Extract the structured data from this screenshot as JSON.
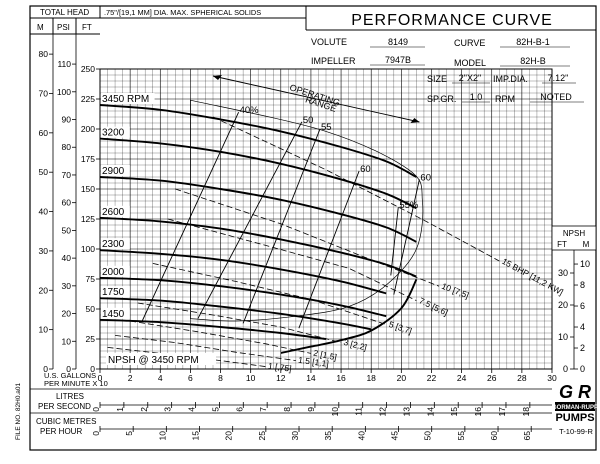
{
  "header": {
    "total_head": "TOTAL HEAD",
    "unit_m": "M",
    "unit_psi": "PSI",
    "unit_ft": "FT",
    "solids_note": ".75\"/[19,1 MM] DIA. MAX. SPHERICAL SOLIDS",
    "title": "PERFORMANCE CURVE"
  },
  "spec": {
    "volute_label": "VOLUTE",
    "volute": "8149",
    "curve_label": "CURVE",
    "curve": "82H-B-1",
    "impeller_label": "IMPELLER",
    "impeller": "7947B",
    "model_label": "MODEL",
    "model": "82H-B",
    "size_label": "SIZE",
    "size": "2\"X2\"",
    "imp_dia_label": "IMP.DIA.",
    "imp_dia": "7.12\"",
    "sp_gr_label": "SP.GR.",
    "sp_gr": "1.0",
    "rpm_label": "RPM",
    "rpm": "NOTED"
  },
  "footer": {
    "us_gallons": "U.S. GALLONS",
    "per_minute": "PER MINUTE X 10",
    "litres": "LITRES",
    "per_second": "PER SECOND",
    "cubic_metres": "CUBIC METRES",
    "per_hour": "PER HOUR",
    "file_no": "FILE NO. 82H0.a01",
    "doc_no": "T-10-99-R"
  },
  "logo": {
    "monogram": "G R",
    "brand_line1": "GORMAN-RUPP",
    "brand_line2": "PUMPS"
  },
  "chart_data": {
    "type": "line",
    "x_unit": "U.S. GALLONS PER MINUTE X 10",
    "xlim": [
      0,
      30
    ],
    "ylim_ft": [
      0,
      250
    ],
    "ylim_m": [
      0,
      80
    ],
    "ylim_psi": [
      0,
      110
    ],
    "x_ticks": [
      "0",
      "2",
      "4",
      "6",
      "8",
      "10",
      "12",
      "14",
      "16",
      "18",
      "20",
      "22",
      "24",
      "26",
      "28",
      "30"
    ],
    "ft_ticks": [
      "0",
      "25",
      "50",
      "75",
      "100",
      "125",
      "150",
      "175",
      "200",
      "225",
      "250"
    ],
    "m_ticks": [
      "0",
      "10",
      "20",
      "30",
      "40",
      "50",
      "60",
      "70",
      "80"
    ],
    "psi_ticks": [
      "0",
      "10",
      "20",
      "30",
      "40",
      "50",
      "60",
      "70",
      "80",
      "90",
      "100",
      "110"
    ],
    "litres_ticks": [
      "0",
      "1",
      "2",
      "3",
      "4",
      "5",
      "6",
      "7",
      "8",
      "9",
      "10",
      "11",
      "12",
      "13",
      "14",
      "15",
      "16",
      "17",
      "18"
    ],
    "m3h_ticks": [
      "0",
      "5",
      "10",
      "15",
      "20",
      "25",
      "30",
      "35",
      "40",
      "45",
      "50",
      "55",
      "60",
      "65"
    ],
    "npsh_title": "NPSH",
    "npsh_ft_label": "FT",
    "npsh_m_label": "M",
    "npsh_ft_ticks": [
      "0",
      "10",
      "20",
      "30"
    ],
    "npsh_m_ticks": [
      "0",
      "2",
      "4",
      "6",
      "8",
      "10"
    ],
    "operating_range_label": "OPERATING\nRANGE",
    "npsh_curve_label": "NPSH @ 3450 RPM",
    "npsh_curve": [
      [
        12,
        5
      ],
      [
        14,
        7
      ],
      [
        16,
        9
      ],
      [
        18,
        12
      ],
      [
        20,
        19
      ],
      [
        21,
        28
      ]
    ],
    "speed_curves": [
      {
        "name": "3450 RPM",
        "label": "3450 RPM",
        "points": [
          [
            0,
            220
          ],
          [
            4,
            216
          ],
          [
            8,
            208
          ],
          [
            12,
            198
          ],
          [
            16,
            185
          ],
          [
            19,
            173
          ],
          [
            21,
            160
          ]
        ]
      },
      {
        "name": "3200",
        "label": "3200",
        "points": [
          [
            0,
            192
          ],
          [
            4,
            188
          ],
          [
            8,
            181
          ],
          [
            12,
            171
          ],
          [
            16,
            158
          ],
          [
            19,
            146
          ],
          [
            21,
            134
          ]
        ]
      },
      {
        "name": "2900",
        "label": "2900",
        "points": [
          [
            0,
            160
          ],
          [
            4,
            157
          ],
          [
            8,
            150
          ],
          [
            12,
            141
          ],
          [
            16,
            129
          ],
          [
            19,
            118
          ],
          [
            21,
            106
          ]
        ]
      },
      {
        "name": "2600",
        "label": "2600",
        "points": [
          [
            0,
            126
          ],
          [
            4,
            123
          ],
          [
            8,
            117
          ],
          [
            12,
            108
          ],
          [
            16,
            97
          ],
          [
            19,
            87
          ],
          [
            21,
            77
          ]
        ]
      },
      {
        "name": "2300",
        "label": "2300",
        "points": [
          [
            0,
            99
          ],
          [
            4,
            96
          ],
          [
            8,
            91
          ],
          [
            12,
            83
          ],
          [
            16,
            73
          ],
          [
            19,
            63
          ]
        ]
      },
      {
        "name": "2000",
        "label": "2000",
        "points": [
          [
            0,
            76
          ],
          [
            4,
            74
          ],
          [
            8,
            69
          ],
          [
            12,
            62
          ],
          [
            16,
            53
          ],
          [
            19,
            44
          ]
        ]
      },
      {
        "name": "1750",
        "label": "1750",
        "points": [
          [
            0,
            59
          ],
          [
            4,
            57
          ],
          [
            8,
            52
          ],
          [
            12,
            46
          ],
          [
            16,
            38
          ],
          [
            18,
            33
          ]
        ]
      },
      {
        "name": "1450",
        "label": "1450",
        "points": [
          [
            0,
            41
          ],
          [
            4,
            39
          ],
          [
            8,
            35
          ],
          [
            12,
            30
          ],
          [
            15,
            25
          ]
        ]
      }
    ],
    "efficiency_lines": [
      {
        "label": "40%",
        "points": [
          [
            2.8,
            40
          ],
          [
            9.2,
            214
          ]
        ]
      },
      {
        "label": "50",
        "points": [
          [
            6.5,
            42
          ],
          [
            13.4,
            206
          ]
        ]
      },
      {
        "label": "55",
        "points": [
          [
            9.5,
            38
          ],
          [
            14.6,
            200
          ]
        ]
      },
      {
        "label": "60",
        "points": [
          [
            13.2,
            34
          ],
          [
            17.2,
            165
          ]
        ]
      },
      {
        "label": "60",
        "points": [
          [
            19.5,
            62
          ],
          [
            21.2,
            158
          ]
        ]
      },
      {
        "label": "55%",
        "points": [
          [
            19.3,
            78
          ],
          [
            19.8,
            135
          ]
        ]
      }
    ],
    "bhp_lines": [
      {
        "label": "15 BHP [11,2 KW]",
        "points": [
          [
            7.5,
            210
          ],
          [
            15,
            166
          ],
          [
            21.5,
            124
          ],
          [
            26.5,
            90
          ]
        ]
      },
      {
        "label": "10 [7,5]",
        "points": [
          [
            5,
            150
          ],
          [
            12,
            121
          ],
          [
            18,
            91
          ],
          [
            22.5,
            69
          ]
        ]
      },
      {
        "label": "7.5 [5,6]",
        "points": [
          [
            4.5,
            125
          ],
          [
            11,
            103
          ],
          [
            16.5,
            84
          ],
          [
            21,
            57
          ]
        ]
      },
      {
        "label": "5 [3,7]",
        "points": [
          [
            3.5,
            88
          ],
          [
            9,
            73
          ],
          [
            14,
            58
          ],
          [
            19,
            37
          ]
        ]
      },
      {
        "label": "3 [2,2]",
        "points": [
          [
            2.5,
            55
          ],
          [
            7.5,
            45
          ],
          [
            12,
            35
          ],
          [
            16,
            22
          ]
        ]
      },
      {
        "label": "2 [1,5]",
        "points": [
          [
            2,
            40
          ],
          [
            6.5,
            31
          ],
          [
            11,
            21
          ],
          [
            14,
            13
          ]
        ]
      },
      {
        "label": "1.5 [1,1]",
        "points": [
          [
            1,
            28
          ],
          [
            5,
            22
          ],
          [
            9,
            14
          ],
          [
            13,
            7
          ]
        ]
      },
      {
        "label": "1 [,75]",
        "points": [
          [
            0.5,
            18
          ],
          [
            4,
            13
          ],
          [
            8,
            7
          ],
          [
            11,
            2
          ]
        ]
      }
    ]
  }
}
